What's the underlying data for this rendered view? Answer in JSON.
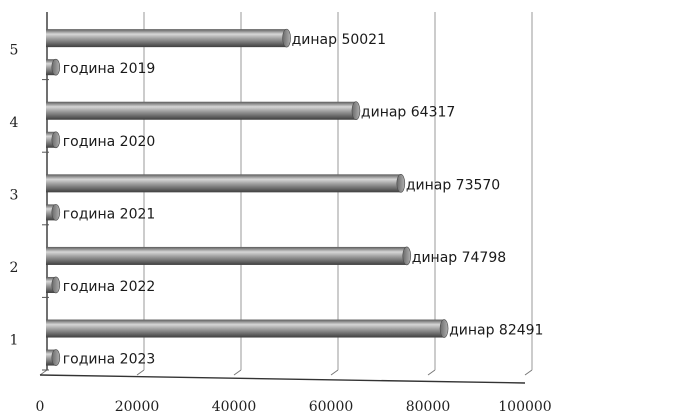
{
  "chart_data": {
    "type": "bar",
    "orientation": "horizontal",
    "style": "3d-cylinder",
    "categories": [
      "1",
      "2",
      "3",
      "4",
      "5"
    ],
    "series": [
      {
        "name": "динар",
        "values": [
          82491,
          74798,
          73570,
          64317,
          50021
        ],
        "labels": [
          "динар 82491",
          "динар 74798",
          "динар 73570",
          "динар 64317",
          "динар 50021"
        ]
      },
      {
        "name": "година",
        "values": [
          2023,
          2022,
          2021,
          2020,
          2019
        ],
        "labels": [
          "година 2023",
          "година 2022",
          "година 2021",
          "година 2020",
          "година 2019"
        ]
      }
    ],
    "xlim": [
      0,
      100000
    ],
    "x_ticks": [
      "0",
      "20000",
      "40000",
      "60000",
      "80000",
      "100000"
    ],
    "y_ticks": [
      "1",
      "2",
      "3",
      "4",
      "5"
    ],
    "grid": true,
    "colors": {
      "bar": "#8a8a8a",
      "bar_light": "#d2d2d2",
      "bar_dark": "#4a4a4a",
      "grid": "#9a9a9a"
    }
  }
}
